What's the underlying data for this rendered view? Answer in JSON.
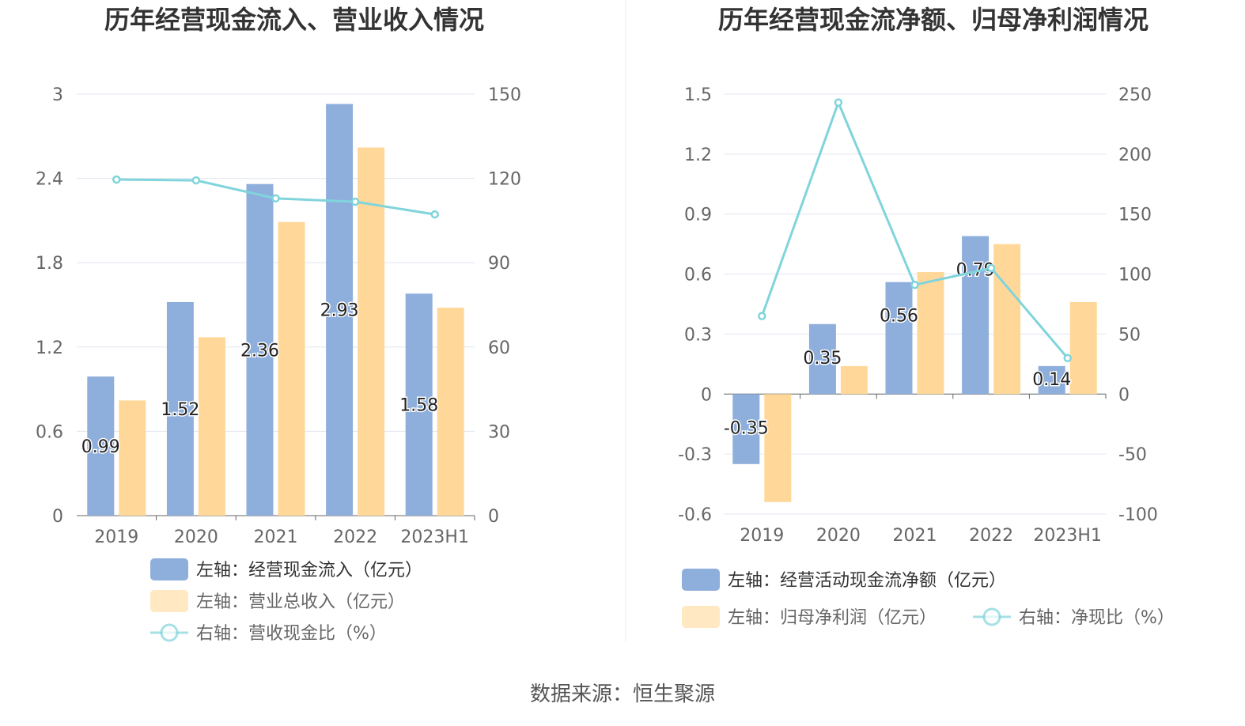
{
  "source": "数据来源：恒生聚源",
  "colors": {
    "blue": "#8eaedb",
    "orange": "#ffd899",
    "line": "#80d4dc",
    "grid": "#e0e6f0"
  },
  "chart_data": [
    {
      "type": "bar",
      "title": "历年经营现金流入、营业收入情况",
      "categories": [
        "2019",
        "2020",
        "2021",
        "2022",
        "2023H1"
      ],
      "left_axis": {
        "ylim": [
          0,
          3
        ],
        "ticks": [
          "0",
          "0.6",
          "1.2",
          "1.8",
          "2.4",
          "3"
        ]
      },
      "right_axis": {
        "ylim": [
          0,
          150
        ],
        "ticks": [
          "0",
          "30",
          "60",
          "90",
          "120",
          "150"
        ]
      },
      "series": [
        {
          "name": "左轴：经营现金流入（亿元）",
          "type": "bar",
          "axis": "left",
          "values": [
            0.99,
            1.52,
            2.36,
            2.93,
            1.58
          ],
          "labels": [
            "0.99",
            "1.52",
            "2.36",
            "2.93",
            "1.58"
          ]
        },
        {
          "name": "左轴：营业总收入（亿元）",
          "type": "bar",
          "axis": "left",
          "values": [
            0.82,
            1.27,
            2.09,
            2.62,
            1.48
          ]
        },
        {
          "name": "右轴：营收现金比（%）",
          "type": "line",
          "axis": "right",
          "values": [
            119.6,
            119.3,
            112.9,
            111.7,
            107.2
          ]
        }
      ]
    },
    {
      "type": "bar",
      "title": "历年经营现金流净额、归母净利润情况",
      "categories": [
        "2019",
        "2020",
        "2021",
        "2022",
        "2023H1"
      ],
      "left_axis": {
        "ylim": [
          -0.6,
          1.5
        ],
        "ticks": [
          "-0.6",
          "-0.3",
          "0",
          "0.3",
          "0.6",
          "0.9",
          "1.2",
          "1.5"
        ]
      },
      "right_axis": {
        "ylim": [
          -100,
          250
        ],
        "ticks": [
          "-100",
          "-50",
          "0",
          "50",
          "100",
          "150",
          "200",
          "250"
        ]
      },
      "series": [
        {
          "name": "左轴：经营活动现金流净额（亿元）",
          "type": "bar",
          "axis": "left",
          "values": [
            -0.35,
            0.35,
            0.56,
            0.79,
            0.14
          ],
          "labels": [
            "-0.35",
            "0.35",
            "0.56",
            "0.79",
            "0.14"
          ]
        },
        {
          "name": "左轴：归母净利润（亿元）",
          "type": "bar",
          "axis": "left",
          "values": [
            -0.54,
            0.14,
            0.61,
            0.75,
            0.46
          ]
        },
        {
          "name": "右轴：净现比（%）",
          "type": "line",
          "axis": "right",
          "values": [
            65,
            243,
            91,
            105,
            30
          ]
        }
      ]
    }
  ]
}
